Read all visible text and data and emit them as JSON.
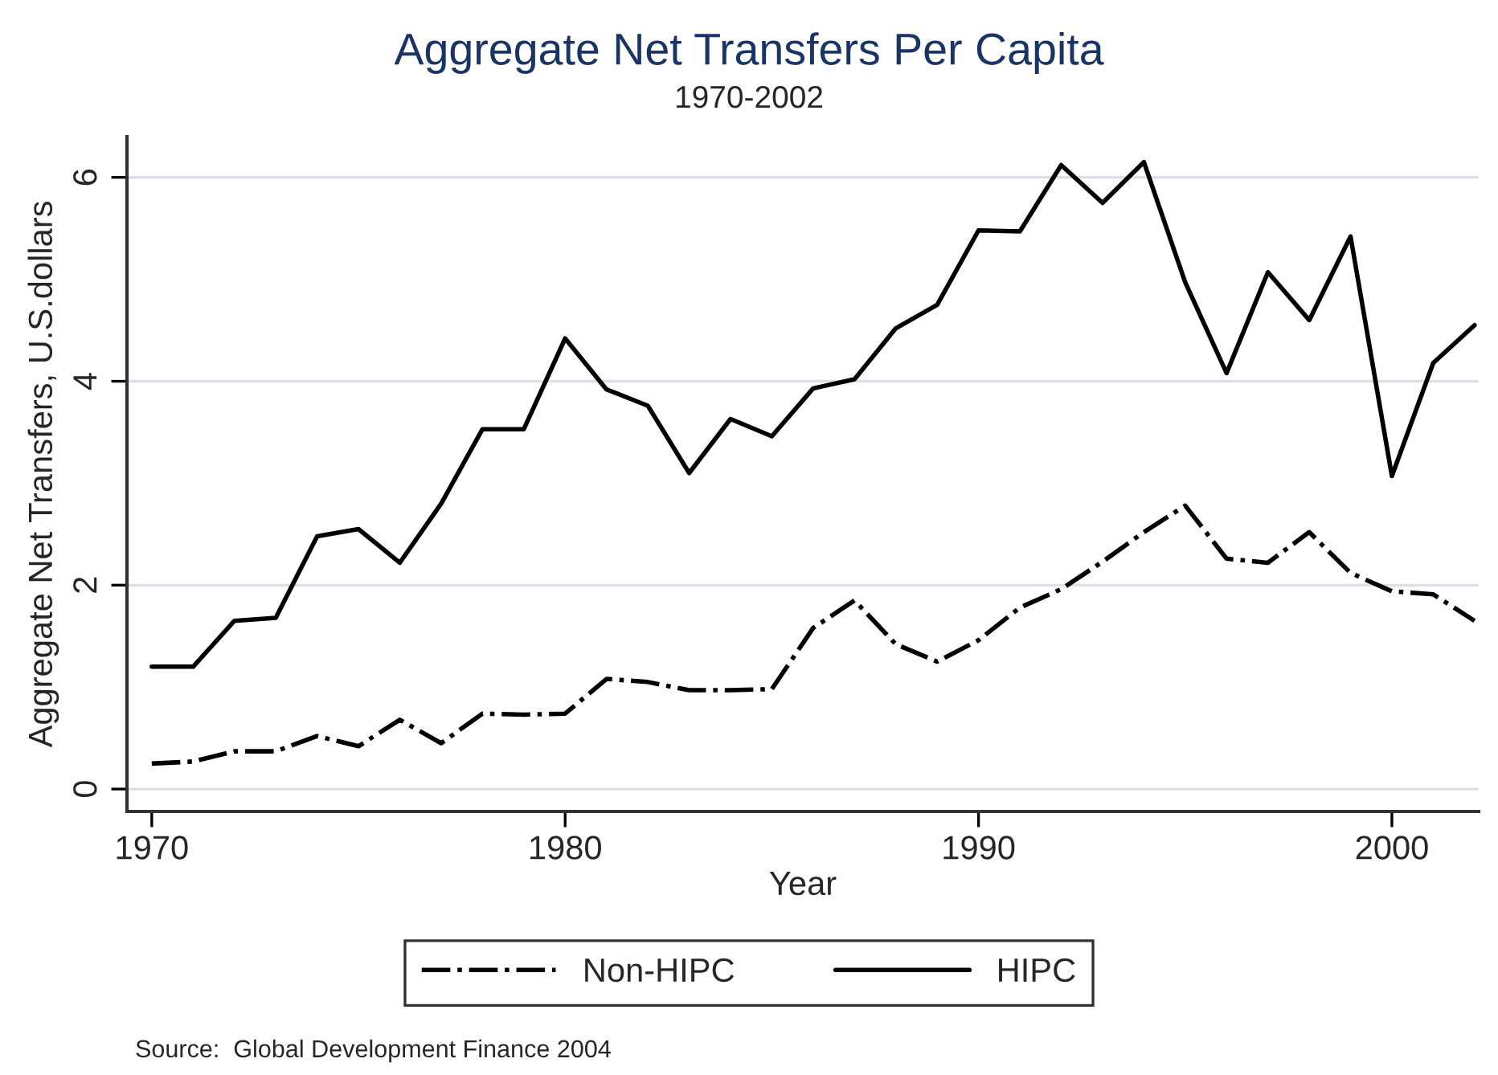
{
  "chart_data": {
    "type": "line",
    "title": "Aggregate Net Transfers Per Capita",
    "subtitle": "1970-2002",
    "xlabel": "Year",
    "ylabel": "Aggregate Net Transfers, U.S.dollars",
    "x": [
      1970,
      1971,
      1972,
      1973,
      1974,
      1975,
      1976,
      1977,
      1978,
      1979,
      1980,
      1981,
      1982,
      1983,
      1984,
      1985,
      1986,
      1987,
      1988,
      1989,
      1990,
      1991,
      1992,
      1993,
      1994,
      1995,
      1996,
      1997,
      1998,
      1999,
      2000,
      2001,
      2002
    ],
    "series": [
      {
        "name": "Non-HIPC",
        "color": "#000000",
        "line_style": "dashdot",
        "values": [
          0.25,
          0.27,
          0.37,
          0.37,
          0.52,
          0.42,
          0.68,
          0.45,
          0.74,
          0.73,
          0.74,
          1.08,
          1.05,
          0.97,
          0.97,
          0.98,
          1.58,
          1.85,
          1.42,
          1.25,
          1.46,
          1.78,
          1.96,
          2.23,
          2.52,
          2.78,
          2.26,
          2.22,
          2.52,
          2.12,
          1.94,
          1.91,
          1.65
        ]
      },
      {
        "name": "HIPC",
        "color": "#000000",
        "line_style": "solid",
        "values": [
          1.2,
          1.2,
          1.65,
          1.68,
          2.48,
          2.55,
          2.22,
          2.8,
          3.53,
          3.53,
          4.42,
          3.92,
          3.76,
          3.1,
          3.63,
          3.46,
          3.93,
          4.02,
          4.52,
          4.75,
          5.48,
          5.47,
          6.12,
          5.75,
          6.15,
          4.97,
          4.08,
          5.07,
          4.6,
          5.42,
          3.07,
          4.18,
          4.55
        ]
      }
    ],
    "xlim": [
      1969.4,
      2002.1
    ],
    "xticks": [
      1970,
      1980,
      1990,
      2000
    ],
    "ylim": [
      -0.22,
      6.4
    ],
    "yticks": [
      0,
      2,
      4,
      6
    ],
    "grid": "y",
    "legend": "bottom",
    "annotations": [
      "Source:  Global Development Finance 2004"
    ]
  }
}
